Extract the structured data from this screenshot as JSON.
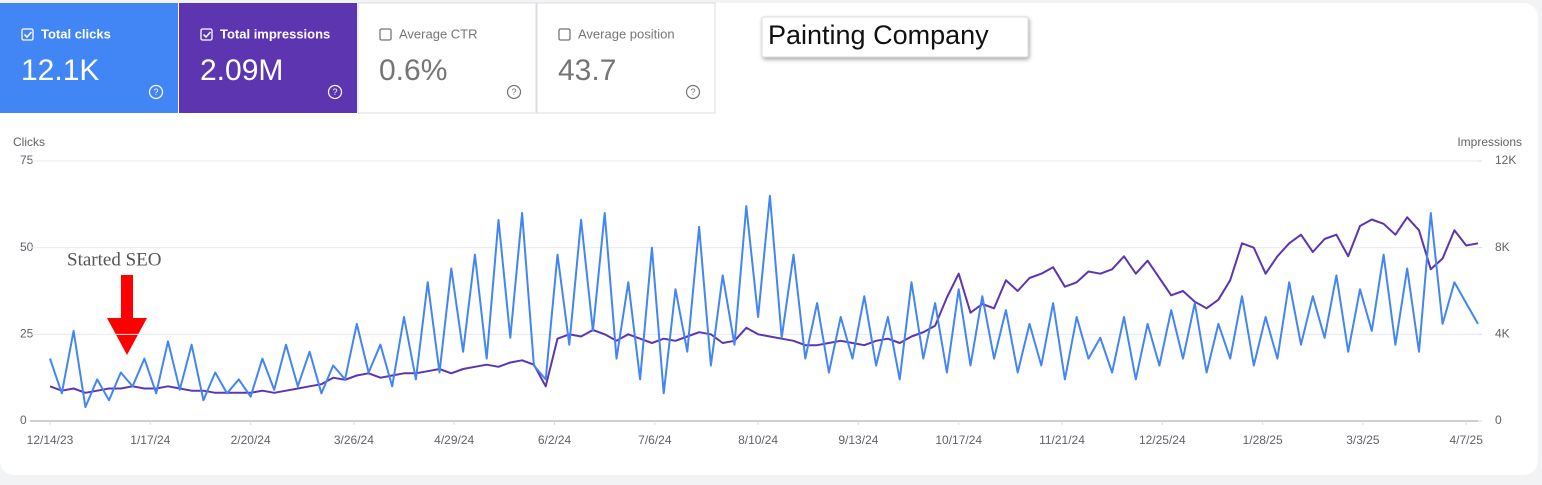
{
  "cards": [
    {
      "label": "Total clicks",
      "value": "12.1K",
      "checked": true,
      "color": "#4285f4"
    },
    {
      "label": "Total impressions",
      "value": "2.09M",
      "checked": true,
      "color": "#5e35b1"
    },
    {
      "label": "Average CTR",
      "value": "0.6%",
      "checked": false
    },
    {
      "label": "Average position",
      "value": "43.7",
      "checked": false
    }
  ],
  "chart_data": {
    "type": "line",
    "title": "Painting Company",
    "annotation": "Started SEO",
    "y_label": "Clicks",
    "y2_label": "Impressions",
    "x": [
      "12/14/23",
      "12/18/23",
      "12/22/23",
      "12/26/23",
      "12/30/23",
      "1/3/24",
      "1/7/24",
      "1/11/24",
      "1/15/24",
      "1/19/24",
      "1/23/24",
      "1/27/24",
      "1/31/24",
      "2/4/24",
      "2/8/24",
      "2/12/24",
      "2/16/24",
      "2/20/24",
      "2/24/24",
      "2/28/24",
      "3/3/24",
      "3/7/24",
      "3/11/24",
      "3/15/24",
      "3/19/24",
      "3/23/24",
      "3/27/24",
      "3/31/24",
      "4/4/24",
      "4/8/24",
      "4/12/24",
      "4/16/24",
      "4/20/24",
      "4/24/24",
      "4/28/24",
      "5/2/24",
      "5/6/24",
      "5/10/24",
      "5/14/24",
      "5/18/24",
      "5/22/24",
      "5/26/24",
      "5/30/24",
      "6/3/24",
      "6/7/24",
      "6/11/24",
      "6/15/24",
      "6/19/24",
      "6/23/24",
      "6/27/24",
      "7/1/24",
      "7/5/24",
      "7/9/24",
      "7/13/24",
      "7/17/24",
      "7/21/24",
      "7/25/24",
      "7/29/24",
      "8/2/24",
      "8/6/24",
      "8/10/24",
      "8/14/24",
      "8/18/24",
      "8/22/24",
      "8/26/24",
      "8/30/24",
      "9/3/24",
      "9/7/24",
      "9/11/24",
      "9/15/24",
      "9/19/24",
      "9/23/24",
      "9/27/24",
      "10/1/24",
      "10/5/24",
      "10/9/24",
      "10/13/24",
      "10/17/24",
      "10/21/24",
      "10/25/24",
      "10/29/24",
      "11/2/24",
      "11/6/24",
      "11/10/24",
      "11/14/24",
      "11/18/24",
      "11/22/24",
      "11/26/24",
      "11/30/24",
      "12/4/24",
      "12/8/24",
      "12/12/24",
      "12/16/24",
      "12/20/24",
      "12/24/24",
      "12/28/24",
      "1/1/25",
      "1/5/25",
      "1/9/25",
      "1/13/25",
      "1/17/25",
      "1/21/25",
      "1/25/25",
      "1/29/25",
      "2/2/25",
      "2/6/25",
      "2/10/25",
      "2/14/25",
      "2/18/25",
      "2/22/25",
      "2/26/25",
      "3/2/25",
      "3/6/25",
      "3/10/25",
      "3/14/25",
      "3/18/25",
      "3/22/25",
      "3/26/25",
      "3/30/25",
      "4/3/25",
      "4/7/25",
      "4/11/25"
    ],
    "series": [
      {
        "name": "Clicks",
        "color": "#4285f4",
        "axis": "y",
        "values": [
          18,
          8,
          26,
          4,
          12,
          6,
          14,
          10,
          18,
          8,
          23,
          9,
          22,
          6,
          14,
          8,
          12,
          7,
          18,
          9,
          22,
          10,
          20,
          8,
          16,
          12,
          28,
          14,
          22,
          10,
          30,
          12,
          40,
          14,
          44,
          20,
          48,
          18,
          58,
          24,
          60,
          16,
          12,
          48,
          22,
          58,
          26,
          60,
          18,
          40,
          12,
          50,
          8,
          38,
          20,
          56,
          16,
          42,
          22,
          62,
          30,
          65,
          24,
          48,
          18,
          34,
          14,
          30,
          18,
          36,
          16,
          30,
          12,
          40,
          18,
          34,
          14,
          38,
          16,
          36,
          18,
          32,
          14,
          28,
          16,
          34,
          12,
          30,
          18,
          24,
          14,
          30,
          12,
          28,
          16,
          32,
          18,
          34,
          14,
          28,
          18,
          36,
          16,
          30,
          18,
          40,
          22,
          36,
          24,
          42,
          20,
          38,
          26,
          48,
          22,
          44,
          20,
          60,
          28,
          40,
          34,
          28
        ]
      },
      {
        "name": "Impressions",
        "color": "#5e35b1",
        "axis": "y2",
        "values": [
          1600,
          1400,
          1500,
          1300,
          1400,
          1500,
          1500,
          1600,
          1500,
          1500,
          1600,
          1500,
          1400,
          1400,
          1300,
          1300,
          1300,
          1300,
          1400,
          1300,
          1400,
          1500,
          1600,
          1700,
          2000,
          1900,
          2100,
          2200,
          2000,
          2100,
          2200,
          2200,
          2300,
          2400,
          2200,
          2400,
          2500,
          2600,
          2500,
          2700,
          2800,
          2600,
          1600,
          3800,
          4000,
          3900,
          4200,
          4000,
          3700,
          4000,
          3800,
          3600,
          3800,
          3700,
          3900,
          4100,
          4000,
          3600,
          3700,
          4300,
          4000,
          3900,
          3800,
          3700,
          3500,
          3500,
          3600,
          3700,
          3600,
          3500,
          3700,
          3800,
          3600,
          3900,
          4100,
          4400,
          5700,
          6800,
          5000,
          5400,
          5200,
          6500,
          6000,
          6600,
          6800,
          7100,
          6200,
          6400,
          6900,
          6800,
          7000,
          7600,
          6800,
          7400,
          6600,
          5800,
          6000,
          5500,
          5200,
          5600,
          6500,
          8200,
          8000,
          6800,
          7600,
          8200,
          8600,
          7800,
          8400,
          8600,
          7600,
          9000,
          9300,
          9100,
          8600,
          9400,
          8800,
          7000,
          7500,
          8800,
          8100,
          8200
        ]
      }
    ],
    "xlim": [
      "12/14/23",
      "4/11/25"
    ],
    "xticks": [
      "12/14/23",
      "1/17/24",
      "2/20/24",
      "3/26/24",
      "4/29/24",
      "6/2/24",
      "7/6/24",
      "8/10/24",
      "9/13/24",
      "10/17/24",
      "11/21/24",
      "12/25/24",
      "1/28/25",
      "3/3/25",
      "4/7/25"
    ],
    "ylim": [
      0,
      75
    ],
    "yticks": [
      0,
      25,
      50,
      75
    ],
    "y2lim": [
      0,
      12000
    ],
    "y2ticks": [
      0,
      {
        "value": 4000,
        "label": "4K"
      },
      {
        "value": 8000,
        "label": "8K"
      },
      {
        "value": 12000,
        "label": "12K"
      }
    ],
    "grid": true
  }
}
